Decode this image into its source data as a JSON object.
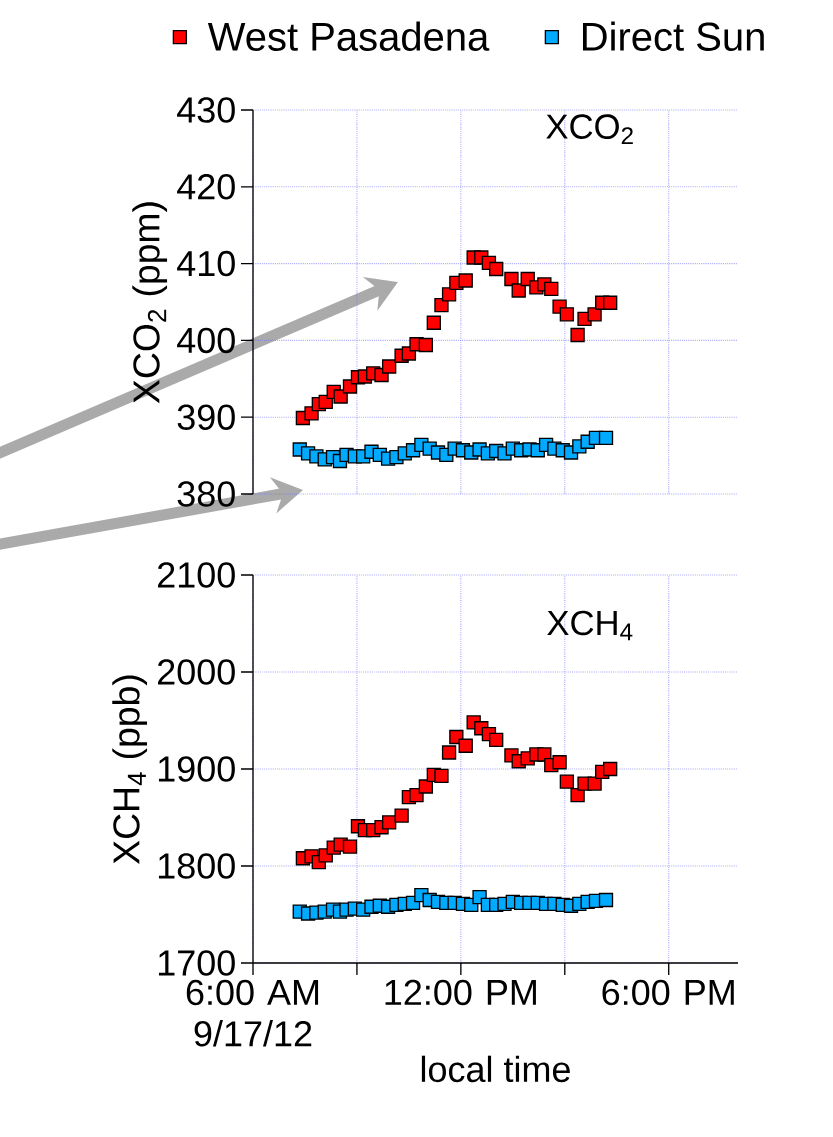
{
  "chart_data": [
    {
      "type": "scatter",
      "ylabel": "XCO$_{2}$ (ppm)",
      "annotations": [
        "XCO$_{2}$"
      ],
      "marker": "square",
      "grid": true,
      "legend": "top",
      "tick_labels": "y",
      "xlim": [
        6,
        20
      ],
      "xticks": [
        6,
        9,
        12,
        15,
        18
      ],
      "ylim": [
        380,
        430
      ],
      "yticks": [
        380,
        390,
        400,
        410,
        420,
        430
      ],
      "series": [
        {
          "name": "West Pasadena",
          "color": "#ff0000",
          "x": [
            7.44,
            7.69,
            7.9,
            8.1,
            8.33,
            8.53,
            8.8,
            9.03,
            9.23,
            9.47,
            9.71,
            9.93,
            10.29,
            10.5,
            10.72,
            10.99,
            11.22,
            11.44,
            11.66,
            11.87,
            12.14,
            12.37,
            12.59,
            12.81,
            13.02,
            13.46,
            13.67,
            13.93,
            14.18,
            14.41,
            14.61,
            14.85,
            15.06,
            15.37,
            15.57,
            15.86,
            16.08,
            16.31
          ],
          "values": [
            389.9,
            390.5,
            391.7,
            392.0,
            393.3,
            392.7,
            394.0,
            395.2,
            395.3,
            395.7,
            395.5,
            396.6,
            398.0,
            398.3,
            399.5,
            399.4,
            402.3,
            404.6,
            406.0,
            407.5,
            407.8,
            410.8,
            410.8,
            410.1,
            409.3,
            408.0,
            406.5,
            408.0,
            406.9,
            407.3,
            406.7,
            404.4,
            403.4,
            400.7,
            402.8,
            403.4,
            404.9,
            404.9
          ]
        },
        {
          "name": "Direct Sun",
          "color": "#00aaff",
          "x": [
            7.35,
            7.59,
            7.83,
            8.07,
            8.31,
            8.51,
            8.7,
            8.94,
            9.18,
            9.42,
            9.66,
            9.9,
            10.14,
            10.38,
            10.62,
            10.86,
            11.1,
            11.34,
            11.58,
            11.82,
            12.06,
            12.3,
            12.54,
            12.78,
            13.02,
            13.26,
            13.5,
            13.74,
            13.98,
            14.22,
            14.46,
            14.7,
            14.94,
            15.18,
            15.42,
            15.66,
            15.9,
            16.19
          ],
          "values": [
            385.8,
            385.3,
            384.9,
            384.5,
            384.8,
            384.3,
            385.1,
            384.9,
            384.9,
            385.5,
            385.1,
            384.6,
            384.8,
            385.3,
            385.7,
            386.4,
            385.9,
            385.4,
            385.1,
            385.9,
            385.7,
            385.4,
            385.8,
            385.3,
            385.6,
            385.3,
            385.9,
            385.7,
            385.8,
            385.7,
            386.4,
            385.9,
            385.7,
            385.4,
            386.2,
            386.8,
            387.3,
            387.3
          ]
        }
      ]
    },
    {
      "type": "scatter",
      "ylabel": "XCH$_{4}$ (ppb)",
      "xlabel": "local time",
      "annotations": [
        "XCH$_{4}$"
      ],
      "marker": "square",
      "grid": true,
      "xlim": [
        6,
        20
      ],
      "xticks": [
        {
          "value": 6,
          "label": "6:00 AM 9/17/12"
        },
        {
          "value": 9,
          "label": null
        },
        {
          "value": 12,
          "label": "12:00 PM"
        },
        {
          "value": 15,
          "label": null
        },
        {
          "value": 18,
          "label": "6:00 PM"
        }
      ],
      "ylim": [
        1700,
        2100
      ],
      "yticks": [
        1700,
        1800,
        1900,
        2000,
        2100
      ],
      "series": [
        {
          "color": "#ff0000",
          "x": [
            7.44,
            7.69,
            7.9,
            8.1,
            8.33,
            8.53,
            8.8,
            9.03,
            9.23,
            9.47,
            9.71,
            9.93,
            10.29,
            10.5,
            10.72,
            10.99,
            11.22,
            11.44,
            11.66,
            11.87,
            12.14,
            12.37,
            12.59,
            12.81,
            13.02,
            13.46,
            13.67,
            13.93,
            14.18,
            14.41,
            14.61,
            14.85,
            15.06,
            15.37,
            15.57,
            15.86,
            16.08,
            16.31
          ],
          "values": [
            1808,
            1810,
            1804,
            1811,
            1819,
            1822,
            1820,
            1841,
            1837,
            1837,
            1840,
            1845,
            1852,
            1871,
            1873,
            1882,
            1894,
            1893,
            1917,
            1933,
            1924,
            1948,
            1942,
            1936,
            1930,
            1914,
            1908,
            1911,
            1915,
            1915,
            1904,
            1907,
            1887,
            1873,
            1885,
            1885,
            1897,
            1900
          ]
        },
        {
          "color": "#00aaff",
          "x": [
            7.35,
            7.59,
            7.83,
            8.07,
            8.31,
            8.51,
            8.7,
            8.94,
            9.18,
            9.42,
            9.66,
            9.9,
            10.14,
            10.38,
            10.62,
            10.86,
            11.1,
            11.34,
            11.58,
            11.82,
            12.06,
            12.3,
            12.54,
            12.78,
            13.02,
            13.26,
            13.5,
            13.74,
            13.98,
            14.22,
            14.46,
            14.7,
            14.94,
            15.18,
            15.42,
            15.66,
            15.9,
            16.19
          ],
          "values": [
            1753,
            1751,
            1752,
            1753,
            1755,
            1753,
            1755,
            1756,
            1755,
            1758,
            1759,
            1758,
            1760,
            1761,
            1762,
            1770,
            1765,
            1763,
            1762,
            1762,
            1761,
            1760,
            1768,
            1760,
            1760,
            1761,
            1763,
            1762,
            1762,
            1762,
            1761,
            1761,
            1760,
            1759,
            1761,
            1763,
            1764,
            1765
          ]
        }
      ]
    }
  ]
}
